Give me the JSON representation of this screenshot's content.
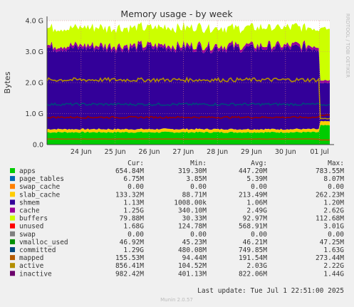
{
  "chart_data": {
    "type": "area",
    "title": "Memory usage - by week",
    "ylabel": "Bytes",
    "watermark": "RRDTOOL / TOBI OETIKER",
    "footer": "Munin 2.0.57",
    "last_update": "Last update: Tue Jul  1 22:51:00 2025",
    "ylim": [
      0,
      4
    ],
    "y_unit": "G",
    "y_ticks": [
      {
        "v": 0,
        "label": "0.0"
      },
      {
        "v": 1,
        "label": "1.0 G"
      },
      {
        "v": 2,
        "label": "2.0 G"
      },
      {
        "v": 3,
        "label": "3.0 G"
      },
      {
        "v": 4,
        "label": "4.0 G"
      }
    ],
    "x_ticks": [
      "24 Jun",
      "25 Jun",
      "26 Jun",
      "27 Jun",
      "28 Jun",
      "29 Jun",
      "30 Jun",
      "01 Jul"
    ],
    "x_tick_days": [
      1,
      2,
      3,
      4,
      5,
      6,
      7,
      8
    ],
    "x_range_days": [
      0.0,
      8.3
    ],
    "series": [
      {
        "name": "apps",
        "color": "#00cc00",
        "cur": "654.84M",
        "min": "319.30M",
        "avg": "447.20M",
        "max": "783.55M"
      },
      {
        "name": "page_tables",
        "color": "#0066b3",
        "cur": "6.75M",
        "min": "3.85M",
        "avg": "5.39M",
        "max": "8.07M"
      },
      {
        "name": "swap_cache",
        "color": "#ff8000",
        "cur": "0.00",
        "min": "0.00",
        "avg": "0.00",
        "max": "0.00"
      },
      {
        "name": "slab_cache",
        "color": "#ffcc00",
        "cur": "133.32M",
        "min": "88.71M",
        "avg": "213.49M",
        "max": "262.23M"
      },
      {
        "name": "shmem",
        "color": "#330099",
        "cur": "1.13M",
        "min": "1008.00k",
        "avg": "1.06M",
        "max": "1.20M"
      },
      {
        "name": "cache",
        "color": "#990099",
        "cur": "1.25G",
        "min": "340.10M",
        "avg": "2.49G",
        "max": "2.62G"
      },
      {
        "name": "buffers",
        "color": "#ccff00",
        "cur": "79.88M",
        "min": "30.33M",
        "avg": "92.97M",
        "max": "112.68M"
      },
      {
        "name": "unused",
        "color": "#ff0000",
        "cur": "1.68G",
        "min": "124.78M",
        "avg": "568.91M",
        "max": "3.01G"
      },
      {
        "name": "swap",
        "color": "#808080",
        "cur": "0.00",
        "min": "0.00",
        "avg": "0.00",
        "max": "0.00"
      },
      {
        "name": "vmalloc_used",
        "color": "#008f00",
        "cur": "46.92M",
        "min": "45.23M",
        "avg": "46.21M",
        "max": "47.25M"
      },
      {
        "name": "committed",
        "color": "#00487d",
        "cur": "1.29G",
        "min": "480.08M",
        "avg": "749.85M",
        "max": "1.63G"
      },
      {
        "name": "mapped",
        "color": "#b35a00",
        "cur": "155.53M",
        "min": "94.44M",
        "avg": "191.54M",
        "max": "273.44M"
      },
      {
        "name": "active",
        "color": "#b38f00",
        "cur": "856.41M",
        "min": "104.52M",
        "avg": "2.03G",
        "max": "2.22G"
      },
      {
        "name": "inactive",
        "color": "#6b006b",
        "cur": "982.42M",
        "min": "401.13M",
        "avg": "822.06M",
        "max": "1.44G"
      }
    ],
    "stacked_areas": [
      {
        "name": "apps",
        "color": "#00cc00",
        "base": 0.4,
        "end": 0.62
      },
      {
        "name": "slab_cache",
        "color": "#ffcc00",
        "base": 0.1,
        "end": 0.13
      },
      {
        "name": "cache",
        "color": "#330099",
        "base": 2.62,
        "end": 1.25
      },
      {
        "name": "buffers",
        "color": "#990099",
        "base": 0.09,
        "end": 0.08
      },
      {
        "name": "unused",
        "color": "#ccff00",
        "base": 0.57,
        "end": 1.68
      }
    ],
    "line_series": [
      {
        "name": "committed",
        "color": "#00487d",
        "base": 1.3,
        "end": 1.28
      },
      {
        "name": "inactive",
        "color": "#990000",
        "base": 0.88,
        "end": 0.95
      },
      {
        "name": "active",
        "color": "#b38f00",
        "base": 2.09,
        "end": 0.84
      },
      {
        "name": "mapped",
        "color": "#b35a00",
        "base": 0.18,
        "end": 0.15
      }
    ],
    "drop_day": 8.0,
    "legend_headers": {
      "cur": "Cur:",
      "min": "Min:",
      "avg": "Avg:",
      "max": "Max:"
    }
  }
}
